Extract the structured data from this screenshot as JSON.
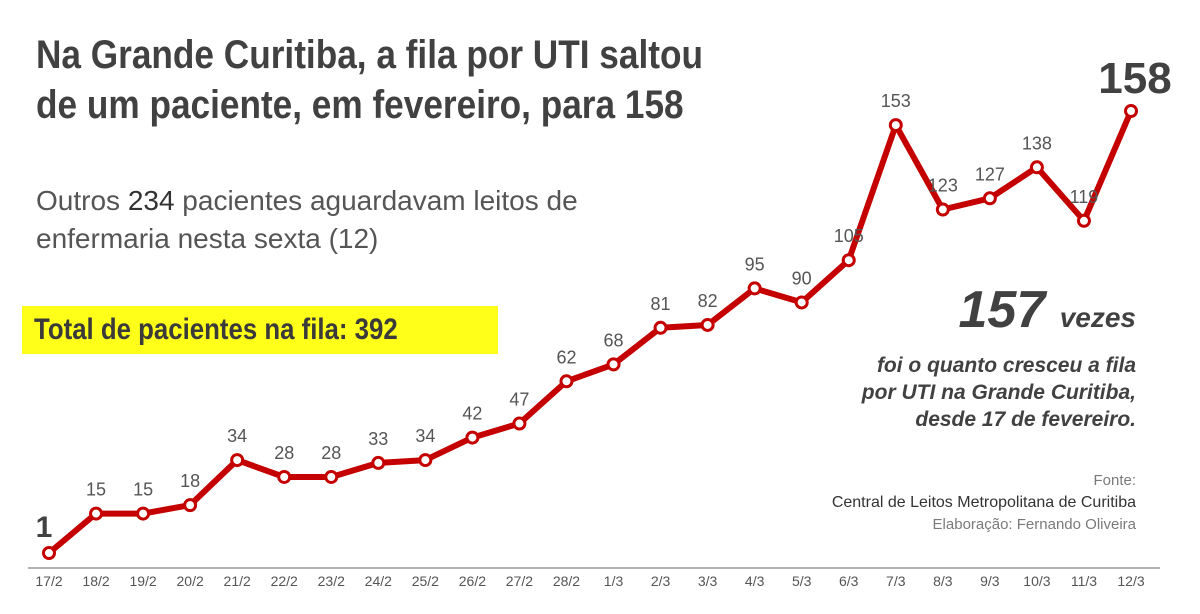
{
  "headline": "Na Grande Curitiba, a fila por UTI saltou de um paciente, em fevereiro, para 158",
  "subtitle": {
    "prefix": "Outros ",
    "number": "234",
    "suffix": " pacientes aguardavam leitos de enfermaria nesta sexta (12)"
  },
  "total_box": "Total de pacientes na fila: 392",
  "callout": {
    "number": "157",
    "unit": "vezes",
    "line1": "foi o quanto cresceu a fila",
    "line2": "por UTI na Grande Curitiba,",
    "line3": "desde 17 de fevereiro."
  },
  "source": {
    "label": "Fonte:",
    "org": "Central de Leitos Metropolitana de Curitiba",
    "credit": "Elaboração: Fernando Oliveira"
  },
  "colors": {
    "line": "#c40000",
    "highlight": "#ffff1a",
    "text": "#414141"
  },
  "chart_data": {
    "type": "line",
    "categories": [
      "17/2",
      "18/2",
      "19/2",
      "20/2",
      "21/2",
      "22/2",
      "23/2",
      "24/2",
      "25/2",
      "26/2",
      "27/2",
      "28/2",
      "1/3",
      "2/3",
      "3/3",
      "4/3",
      "5/3",
      "6/3",
      "7/3",
      "8/3",
      "9/3",
      "10/3",
      "11/3",
      "12/3"
    ],
    "series": [
      {
        "values": [
          1,
          15,
          15,
          18,
          34,
          28,
          28,
          33,
          34,
          42,
          47,
          62,
          68,
          81,
          82,
          95,
          90,
          105,
          153,
          123,
          127,
          138,
          119,
          158
        ]
      }
    ],
    "ylim": [
      0,
      160
    ],
    "grid": false,
    "legend": "none"
  }
}
